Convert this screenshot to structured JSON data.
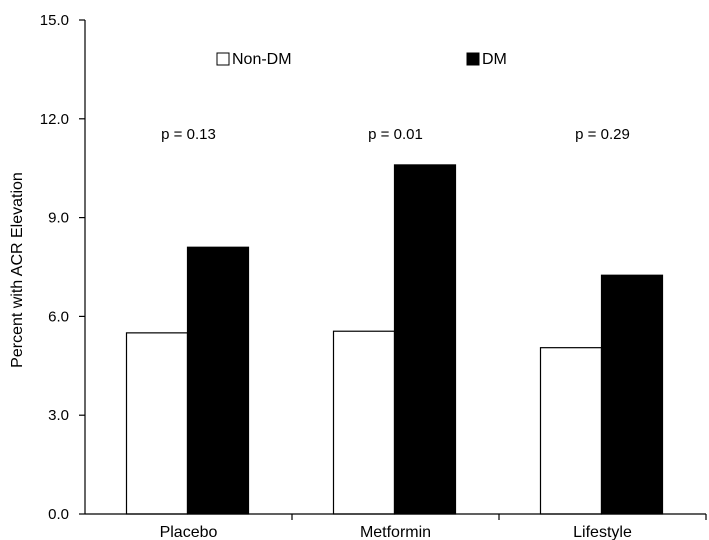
{
  "chart_data": {
    "type": "bar",
    "categories": [
      "Placebo",
      "Metformin",
      "Lifestyle"
    ],
    "series": [
      {
        "name": "Non-DM",
        "values": [
          5.5,
          5.55,
          5.05
        ],
        "color": "#ffffff"
      },
      {
        "name": "DM",
        "values": [
          8.1,
          10.6,
          7.25
        ],
        "color": "#000000"
      }
    ],
    "xlabel": "",
    "ylabel": "Percent with ACR Elevation",
    "ylim": [
      0,
      15
    ],
    "yticks": [
      "0.0",
      "3.0",
      "6.0",
      "9.0",
      "12.0",
      "15.0"
    ],
    "annotations": [
      "p = 0.13",
      "p = 0.01",
      "p = 0.29"
    ],
    "legend": {
      "placement": "top-center"
    },
    "grid": false
  }
}
